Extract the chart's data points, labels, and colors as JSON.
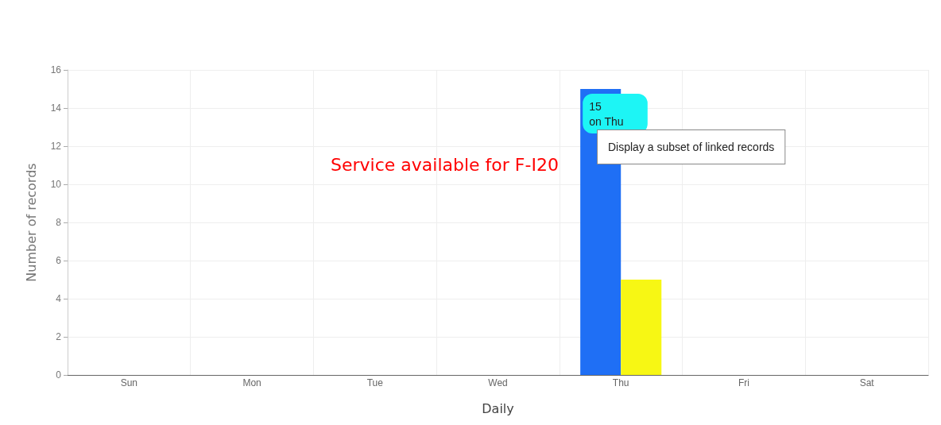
{
  "chart_data": {
    "type": "bar",
    "title": "Service available for F-I20",
    "xlabel": "Daily",
    "ylabel": "Number of records",
    "categories": [
      "Sun",
      "Mon",
      "Tue",
      "Wed",
      "Thu",
      "Fri",
      "Sat"
    ],
    "series": [
      {
        "color": "#1f6ff5",
        "values": [
          0,
          0,
          0,
          0,
          15,
          0,
          0
        ]
      },
      {
        "color": "#f7f714",
        "values": [
          0,
          0,
          0,
          0,
          5,
          0,
          0
        ]
      }
    ],
    "ylim": [
      0,
      16
    ],
    "yticks": [
      0,
      2,
      4,
      6,
      8,
      10,
      12,
      14,
      16
    ],
    "grid": true,
    "annotations": [
      {
        "text": "15\non Thu",
        "x": "Thu",
        "y": 15
      },
      "Display a subset of linked records"
    ]
  }
}
